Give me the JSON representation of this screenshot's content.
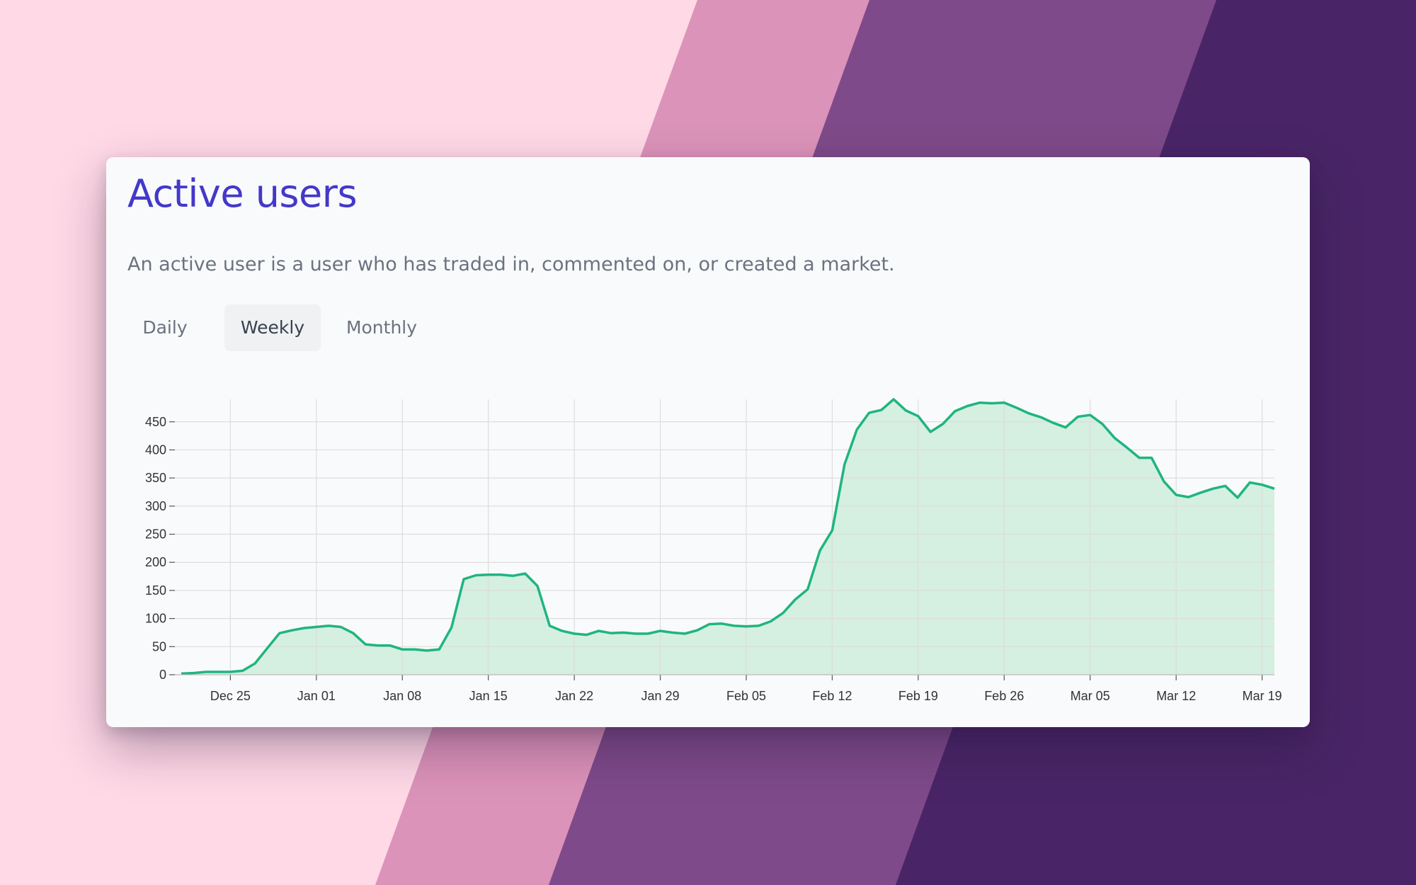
{
  "background": {
    "colors": [
      "#ffd9e6",
      "#dc93b9",
      "#7e4a89",
      "#492567"
    ]
  },
  "card": {
    "title": "Active users",
    "description": "An active user is a user who has traded in, commented on, or created a market."
  },
  "tabs": [
    {
      "label": "Daily",
      "active": false
    },
    {
      "label": "Weekly",
      "active": true
    },
    {
      "label": "Monthly",
      "active": false
    }
  ],
  "colors": {
    "title": "#4338ca",
    "line": "#1fb57f",
    "area": "#d3eedf",
    "grid": "#dddddd"
  },
  "chart_data": {
    "type": "area",
    "title": "",
    "xlabel": "",
    "ylabel": "",
    "ylim": [
      0,
      490
    ],
    "yticks": [
      0,
      50,
      100,
      150,
      200,
      250,
      300,
      350,
      400,
      450
    ],
    "xticks": [
      "Dec 25",
      "Jan 01",
      "Jan 08",
      "Jan 15",
      "Jan 22",
      "Jan 29",
      "Feb 05",
      "Feb 12",
      "Feb 19",
      "Feb 26",
      "Mar 05",
      "Mar 12",
      "Mar 19"
    ],
    "x_start": "Dec 21",
    "x_end": "Mar 20",
    "grid": true,
    "legend": "none",
    "series": [
      {
        "values": [
          2,
          3,
          5,
          5,
          5,
          7,
          20,
          47,
          74,
          79,
          83,
          85,
          87,
          85,
          74,
          54,
          52,
          52,
          45,
          45,
          43,
          45,
          84,
          170,
          177,
          178,
          178,
          176,
          180,
          158,
          87,
          78,
          73,
          71,
          78,
          74,
          75,
          73,
          73,
          78,
          75,
          73,
          79,
          90,
          91,
          87,
          86,
          87,
          95,
          110,
          134,
          152,
          221,
          257,
          374,
          436,
          466,
          471,
          490,
          470,
          460,
          432,
          446,
          469,
          478,
          484,
          483,
          484,
          475,
          465,
          458,
          448,
          440,
          459,
          462,
          446,
          421,
          404,
          386,
          386,
          344,
          320,
          316,
          324,
          331,
          336,
          315,
          342,
          338,
          331
        ]
      }
    ]
  }
}
